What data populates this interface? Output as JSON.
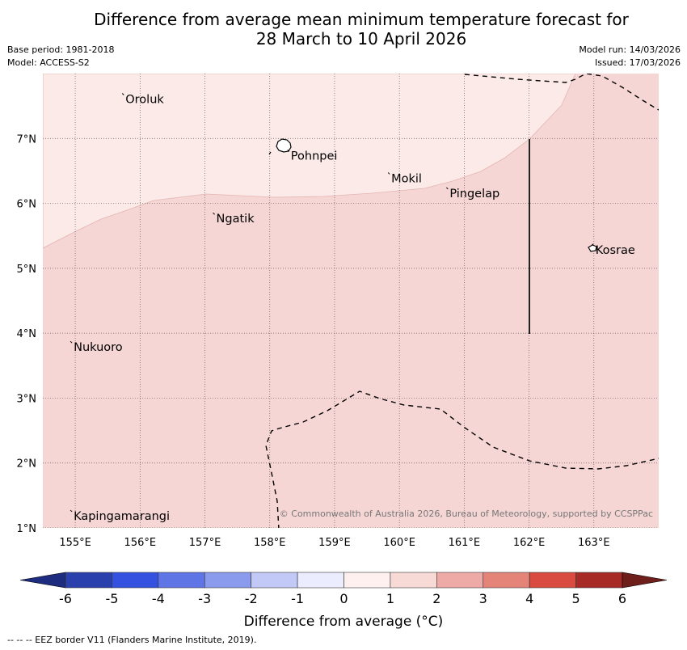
{
  "title": {
    "line1": "Difference from average mean minimum temperature forecast for",
    "line2": "28 March to 10 April 2026"
  },
  "meta": {
    "base_period": "Base period: 1981-2018",
    "model": "Model: ACCESS-S2",
    "model_run": "Model run: 14/03/2026",
    "issued": "Issued: 17/03/2026"
  },
  "map": {
    "lon_range": [
      154.5,
      164.0
    ],
    "lat_range": [
      1.0,
      8.0
    ],
    "lon_ticks": [
      {
        "value": 155,
        "label": "155°E"
      },
      {
        "value": 156,
        "label": "156°E"
      },
      {
        "value": 157,
        "label": "157°E"
      },
      {
        "value": 158,
        "label": "158°E"
      },
      {
        "value": 159,
        "label": "159°E"
      },
      {
        "value": 160,
        "label": "160°E"
      },
      {
        "value": 161,
        "label": "161°E"
      },
      {
        "value": 162,
        "label": "162°E"
      },
      {
        "value": 163,
        "label": "163°E"
      }
    ],
    "lat_ticks": [
      {
        "value": 7,
        "label": "7°N"
      },
      {
        "value": 6,
        "label": "6°N"
      },
      {
        "value": 5,
        "label": "5°N"
      },
      {
        "value": 4,
        "label": "4°N"
      },
      {
        "value": 3,
        "label": "3°N"
      },
      {
        "value": 2,
        "label": "2°N"
      },
      {
        "value": 1,
        "label": "1°N"
      }
    ],
    "places": [
      {
        "name": "Oroluk",
        "lon": 155.75,
        "lat": 7.62
      },
      {
        "name": "Pohnpei",
        "lon": 158.3,
        "lat": 6.75
      },
      {
        "name": "Mokil",
        "lon": 159.85,
        "lat": 6.4
      },
      {
        "name": "Pingelap",
        "lon": 160.75,
        "lat": 6.17
      },
      {
        "name": "Ngatik",
        "lon": 157.15,
        "lat": 5.78
      },
      {
        "name": "Kosrae",
        "lon": 163.0,
        "lat": 5.3
      },
      {
        "name": "Nukuoro",
        "lon": 154.95,
        "lat": 3.8
      },
      {
        "name": "Kapingamarangi",
        "lon": 154.95,
        "lat": 1.2
      }
    ],
    "regions": [
      {
        "range": "1 to 2",
        "color": "#f5d6d4"
      },
      {
        "range": "0 to 1",
        "color": "#fbeae8"
      }
    ],
    "copyright": "© Commonwealth of Australia 2026, Bureau of Meteorology, supported by CCSPPac"
  },
  "colorbar": {
    "ticks": [
      "-6",
      "-5",
      "-4",
      "-3",
      "-2",
      "-1",
      "0",
      "1",
      "2",
      "3",
      "4",
      "5",
      "6"
    ],
    "colors": [
      "#2a41ad",
      "#3551e0",
      "#5f75e6",
      "#8a9aed",
      "#c3c9f6",
      "#ebecfd",
      "#fdf0ee",
      "#f7d9d6",
      "#eeaaa7",
      "#e48378",
      "#d94b41",
      "#a72a26"
    ],
    "under_color": "#1e2c80",
    "over_color": "#6e1f1b",
    "label": "Difference from average (°C)"
  },
  "footnote": "--  --  -- EEZ border V11 (Flanders Marine Institute, 2019)."
}
